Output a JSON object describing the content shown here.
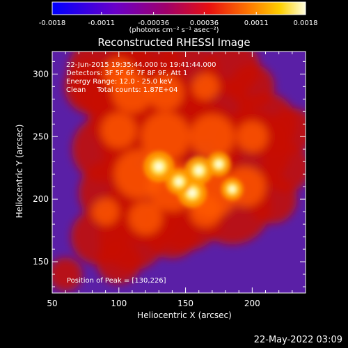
{
  "chart_data": {
    "type": "heatmap",
    "title": "Reconstructed RHESSI Image",
    "xlabel": "Heliocentric X (arcsec)",
    "ylabel": "Heliocentric Y (arcsec)",
    "xlim": [
      50,
      240
    ],
    "ylim": [
      125,
      318
    ],
    "x_ticks": [
      50,
      100,
      150,
      200
    ],
    "x_tick_labels": [
      "50",
      "100",
      "150",
      "200"
    ],
    "y_ticks": [
      150,
      200,
      250,
      300
    ],
    "y_tick_labels": [
      "150",
      "200",
      "250",
      "300"
    ],
    "colorbar": {
      "range": [
        -0.0018,
        0.0018
      ],
      "ticks": [
        -0.0018,
        -0.0011,
        -0.00036,
        0.00036,
        0.0011,
        0.0018
      ],
      "tick_labels": [
        "-0.0018",
        "-0.0011",
        "-0.00036",
        "0.00036",
        "0.0011",
        "0.0018"
      ],
      "unit": "(photons cm⁻² s⁻¹ asec⁻²)",
      "colormap": "blue-purple-red-orange-yellow-white"
    },
    "annotations": {
      "time_range": "22-Jun-2015 19:35:44.000 to 19:41:44.000",
      "detectors": "Detectors: 3F 5F 6F 7F 8F 9F, Att 1",
      "energy": "Energy Range: 12.0 - 25.0 keV",
      "clean": "Clean     Total counts: 1.87E+04",
      "peak": "Position of Peak = [130,226]"
    },
    "peak_position": [
      130,
      226
    ],
    "sources": [
      {
        "x": 130,
        "y": 226,
        "intensity": 1.0
      },
      {
        "x": 160,
        "y": 223,
        "intensity": 0.92
      },
      {
        "x": 155,
        "y": 205,
        "intensity": 0.95
      },
      {
        "x": 175,
        "y": 228,
        "intensity": 0.8
      },
      {
        "x": 185,
        "y": 208,
        "intensity": 0.72
      },
      {
        "x": 145,
        "y": 214,
        "intensity": 0.85
      }
    ],
    "grid": false
  },
  "footer": {
    "date": "22-May-2022 03:09"
  }
}
